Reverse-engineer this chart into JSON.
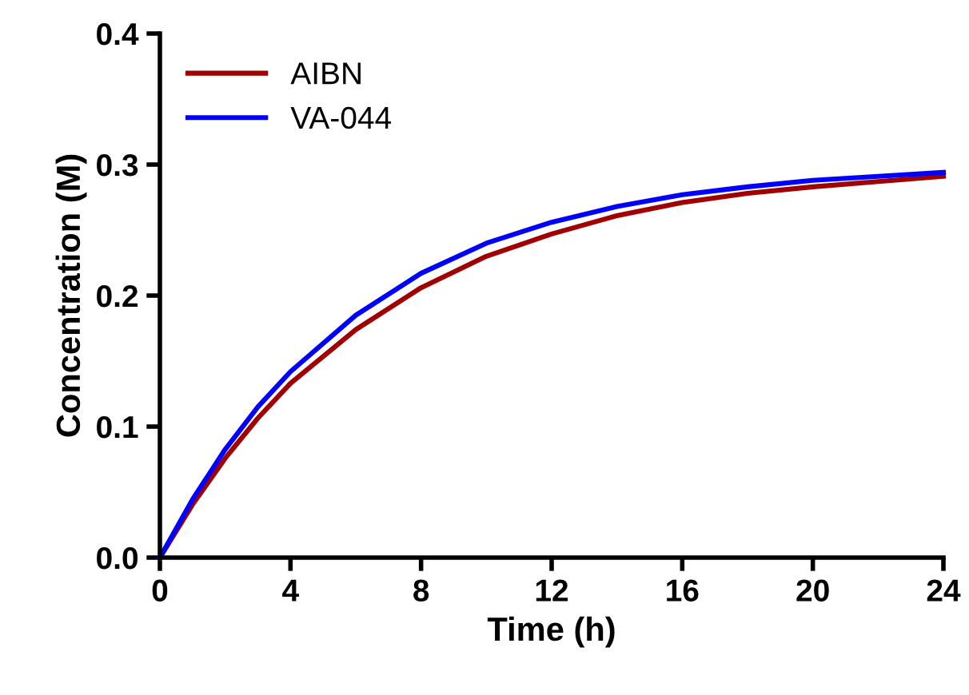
{
  "chart_data": {
    "type": "line",
    "xlabel": "Time (h)",
    "ylabel": "Concentration (M)",
    "x": [
      0,
      1,
      2,
      3,
      4,
      6,
      8,
      10,
      12,
      14,
      16,
      18,
      20,
      22,
      24
    ],
    "series": [
      {
        "name": "AIBN",
        "color": "#a00000",
        "values": [
          0,
          0.0405,
          0.0758,
          0.1064,
          0.133,
          0.174,
          0.206,
          0.23,
          0.247,
          0.261,
          0.271,
          0.278,
          0.283,
          0.287,
          0.291
        ]
      },
      {
        "name": "VA-044",
        "color": "#0000ff",
        "values": [
          0,
          0.0444,
          0.0826,
          0.115,
          0.1419,
          0.185,
          0.217,
          0.24,
          0.256,
          0.268,
          0.277,
          0.283,
          0.288,
          0.291,
          0.294
        ]
      }
    ],
    "xlim": [
      0,
      24
    ],
    "xticks": [
      0,
      4,
      8,
      12,
      16,
      20,
      24
    ],
    "ylim": [
      0,
      0.4
    ],
    "yticks": [
      {
        "value": 0,
        "label": "0.0"
      },
      {
        "value": 0.1,
        "label": "0.1"
      },
      {
        "value": 0.2,
        "label": "0.2"
      },
      {
        "value": 0.3,
        "label": "0.3"
      },
      {
        "value": 0.4,
        "label": "0.4"
      }
    ],
    "grid": false,
    "legend": "top left",
    "marker": "none",
    "line_style": "solid"
  }
}
